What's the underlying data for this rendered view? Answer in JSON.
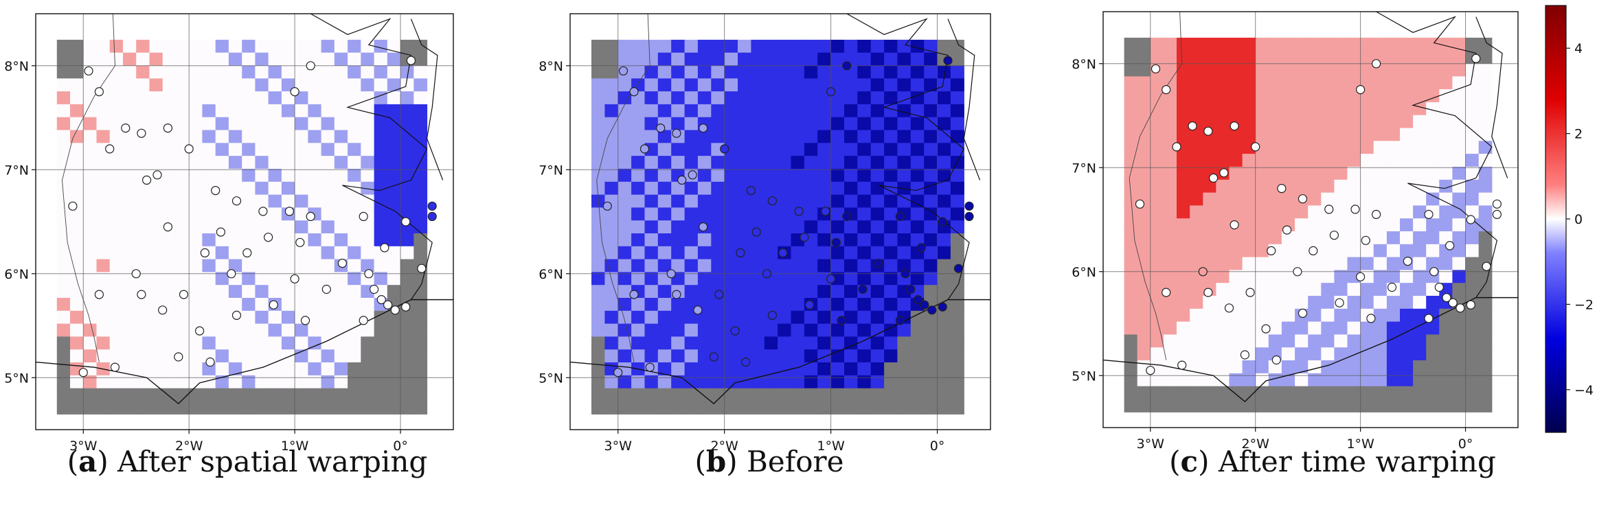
{
  "panels": [
    {
      "id": "a",
      "letter": "a",
      "caption": " After spatial warping",
      "pattern": "spatial"
    },
    {
      "id": "b",
      "letter": "b",
      "caption": " Before",
      "pattern": "before"
    },
    {
      "id": "c",
      "letter": "c",
      "caption": " After time warping",
      "pattern": "time"
    }
  ],
  "axes": {
    "x_ticks": [
      "3°W",
      "2°W",
      "1°W",
      "0°"
    ],
    "y_ticks": [
      "8°N",
      "7°N",
      "6°N",
      "5°N"
    ]
  },
  "colorbar": {
    "ticks": [
      "4",
      "2",
      "0",
      "−2",
      "−4"
    ],
    "range": [
      -5,
      5
    ],
    "colormap": "seismic"
  },
  "colors": {
    "mask": "#7a7a7a",
    "red_strong": "#e82a2a",
    "red_light": "#f5a0a0",
    "blue_light": "#9da0f0",
    "blue_mid": "#2e2ee6",
    "blue_dark": "#0a0aa8",
    "white": "#fdfbfd"
  }
}
